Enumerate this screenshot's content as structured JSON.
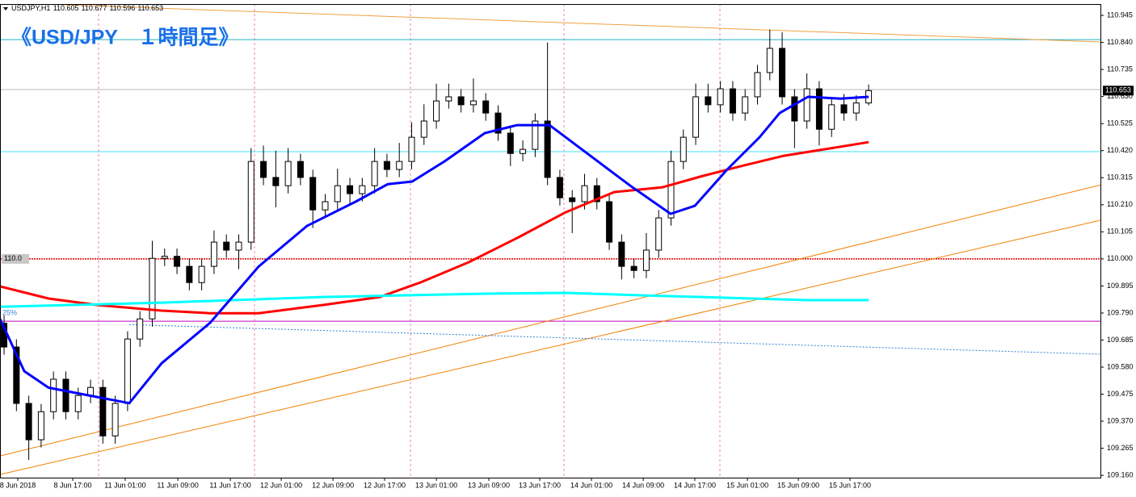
{
  "chart_data": {
    "type": "candlestick",
    "symbol": "USDJPY,H1",
    "title": "《USD/JPY　１時間足》",
    "annotation": "25%",
    "xlim": [
      -0.33,
      88.77
    ],
    "ylim": [
      109.151,
      110.989
    ],
    "yticks": [
      110.945,
      {
        "value": 110.84,
        "label": "110.840"
      },
      110.735,
      {
        "value": 110.63,
        "label": "110.630"
      },
      110.525,
      {
        "value": 110.42,
        "label": "110.420"
      },
      110.315,
      {
        "value": 110.21,
        "label": "110.210"
      },
      110.105,
      {
        "value": 110,
        "label": "110.000"
      },
      109.895,
      {
        "value": 109.79,
        "label": "109.790"
      },
      109.685,
      {
        "value": 109.58,
        "label": "109.580"
      },
      109.475,
      {
        "value": 109.37,
        "label": "109.370"
      },
      109.265,
      {
        "value": 109.16,
        "label": "109.160"
      }
    ],
    "xticks": [
      {
        "value": 1.11,
        "label": "8 Jun 2018"
      },
      {
        "value": 5.56,
        "label": "8 Jun 17:00"
      },
      {
        "value": 9.81,
        "label": "11 Jun 01:00"
      },
      {
        "value": 14.07,
        "label": "11 Jun 09:00"
      },
      {
        "value": 18.32,
        "label": "11 Jun 17:00"
      },
      {
        "value": 22.44,
        "label": "12 Jun 01:00"
      },
      {
        "value": 26.63,
        "label": "12 Jun 09:00"
      },
      {
        "value": 30.81,
        "label": "12 Jun 17:00"
      },
      {
        "value": 35,
        "label": "13 Jun 01:00"
      },
      {
        "value": 39.25,
        "label": "13 Jun 09:00"
      },
      {
        "value": 43.37,
        "label": "13 Jun 17:00"
      },
      {
        "value": 47.56,
        "label": "14 Jun 01:00"
      },
      {
        "value": 51.75,
        "label": "14 Jun 09:00"
      },
      {
        "value": 55.93,
        "label": "14 Jun 17:00"
      },
      {
        "value": 60.19,
        "label": "15 Jun 01:00"
      },
      {
        "value": 64.31,
        "label": "15 Jun 09:00"
      },
      {
        "value": 68.49,
        "label": "15 Jun 17:00"
      }
    ],
    "open": [
      109.75,
      109.658,
      109.439,
      109.298,
      109.407,
      109.533,
      109.407,
      109.47,
      109.501,
      109.313,
      109.439,
      109.689,
      109.767,
      110.002,
      110.01,
      109.971,
      109.908,
      109.971,
      110.065,
      110.034,
      110.065,
      110.378,
      110.316,
      110.284,
      110.378,
      110.316,
      110.19,
      110.222,
      110.284,
      110.253,
      110.284,
      110.378,
      110.347,
      110.378,
      110.472,
      110.535,
      110.613,
      110.629,
      110.598,
      110.613,
      110.566,
      110.488,
      110.409,
      110.425,
      110.535,
      110.316,
      110.237,
      110.222,
      110.284,
      110.222,
      110.065,
      109.971,
      109.955,
      110.034,
      110.159,
      110.378,
      110.472,
      110.629,
      110.598,
      110.66,
      110.566,
      110.629,
      110.723,
      110.817,
      110.629,
      110.535,
      110.66,
      110.503,
      110.598,
      110.566,
      110.605
    ],
    "high": [
      109.78,
      109.688,
      109.469,
      109.437,
      109.563,
      109.563,
      109.5,
      109.531,
      109.531,
      109.469,
      109.719,
      109.797,
      110.07,
      110.04,
      110.04,
      110.001,
      110.001,
      110.11,
      110.095,
      110.095,
      110.43,
      110.44,
      110.42,
      110.43,
      110.408,
      110.346,
      110.252,
      110.35,
      110.314,
      110.314,
      110.43,
      110.408,
      110.45,
      110.53,
      110.6,
      110.68,
      110.68,
      110.659,
      110.7,
      110.643,
      110.596,
      110.518,
      110.46,
      110.565,
      110.84,
      110.346,
      110.267,
      110.33,
      110.314,
      110.252,
      110.095,
      110.001,
      110.1,
      110.19,
      110.42,
      110.502,
      110.68,
      110.68,
      110.69,
      110.69,
      110.659,
      110.753,
      110.89,
      110.88,
      110.659,
      110.72,
      110.69,
      110.628,
      110.64,
      110.635,
      110.677
    ],
    "low": [
      109.628,
      109.409,
      109.22,
      109.268,
      109.377,
      109.377,
      109.377,
      109.44,
      109.283,
      109.283,
      109.409,
      109.659,
      109.737,
      109.972,
      109.941,
      109.878,
      109.878,
      109.941,
      110.004,
      109.96,
      110.035,
      110.286,
      110.2,
      110.254,
      110.286,
      110.12,
      110.16,
      110.192,
      110.21,
      110.223,
      110.254,
      110.317,
      110.317,
      110.348,
      110.442,
      110.505,
      110.583,
      110.568,
      110.568,
      110.536,
      110.458,
      110.36,
      110.379,
      110.395,
      110.286,
      110.207,
      110.1,
      110.192,
      110.192,
      110.035,
      109.92,
      109.925,
      109.925,
      110.004,
      110.129,
      110.348,
      110.442,
      110.568,
      110.568,
      110.536,
      110.536,
      110.599,
      110.693,
      110.599,
      110.43,
      110.505,
      110.44,
      110.473,
      110.536,
      110.536,
      110.596
    ],
    "close": [
      109.658,
      109.439,
      109.298,
      109.407,
      109.533,
      109.407,
      109.47,
      109.501,
      109.313,
      109.439,
      109.689,
      109.767,
      110.002,
      110.01,
      109.971,
      109.908,
      109.971,
      110.065,
      110.034,
      110.065,
      110.378,
      110.316,
      110.284,
      110.378,
      110.316,
      110.19,
      110.222,
      110.284,
      110.253,
      110.284,
      110.378,
      110.347,
      110.378,
      110.472,
      110.535,
      110.613,
      110.629,
      110.598,
      110.613,
      110.566,
      110.488,
      110.409,
      110.425,
      110.535,
      110.316,
      110.237,
      110.222,
      110.284,
      110.222,
      110.065,
      109.971,
      109.955,
      110.034,
      110.159,
      110.378,
      110.472,
      110.629,
      110.598,
      110.66,
      110.566,
      110.629,
      110.723,
      110.817,
      110.629,
      110.535,
      110.66,
      110.503,
      110.598,
      110.566,
      110.605,
      110.653
    ],
    "up_color": "#ffffff",
    "down_color": "#000000",
    "series": [
      {
        "color": "#ff0000",
        "x": [
          -0.33,
          3.6,
          7.52,
          12.76,
          16.68,
          20.61,
          25.84,
          30.42,
          33.69,
          37.62,
          41.54,
          45.47,
          49.39,
          53.32,
          56.59,
          59.86,
          63.13,
          66.4,
          70
        ],
        "values": [
          109.893,
          109.846,
          109.821,
          109.799,
          109.789,
          109.789,
          109.821,
          109.852,
          109.908,
          109.987,
          110.081,
          110.181,
          110.259,
          110.278,
          110.322,
          110.362,
          110.4,
          110.425,
          110.453
        ]
      },
      {
        "color": "#00ffff",
        "x": [
          -0.33,
          12.76,
          25.84,
          38.92,
          45.47,
          52.01,
          58.55,
          65.09,
          70
        ],
        "values": [
          109.814,
          109.83,
          109.852,
          109.865,
          109.868,
          109.858,
          109.849,
          109.84,
          109.84
        ]
      },
      {
        "color": "#0000ff",
        "x": [
          -0.33,
          1.64,
          3.6,
          6.87,
          10.14,
          12.76,
          16.68,
          20.61,
          24.53,
          28.46,
          31.07,
          33.04,
          35.65,
          38.92,
          41.54,
          44.16,
          46.77,
          50.7,
          53.97,
          55.93,
          58.55,
          61.17,
          62.8,
          65.09,
          67.71,
          70
        ],
        "values": [
          109.767,
          109.564,
          109.5,
          109.47,
          109.44,
          109.595,
          109.752,
          109.97,
          110.128,
          110.222,
          110.29,
          110.3,
          110.378,
          110.488,
          110.519,
          110.519,
          110.425,
          110.284,
          110.175,
          110.206,
          110.347,
          110.472,
          110.566,
          110.629,
          110.622,
          110.629
        ]
      }
    ],
    "hlines": [
      {
        "value": 110.851,
        "color": "#20b2c0"
      },
      {
        "value": 110.416,
        "color": "#40e0f0"
      },
      {
        "value": 110.657,
        "color": "#b8b8b8"
      },
      {
        "value": 109.758,
        "color": "#c000c0"
      },
      {
        "value": 110,
        "label": "110.0",
        "color": "#e00000"
      }
    ],
    "trendlines": [
      {
        "color": "#f0a040",
        "x": [
          -0.33,
          88.77
        ],
        "values": [
          110.995,
          110.842
        ]
      },
      {
        "color": "#f08000",
        "x": [
          -0.33,
          88.77
        ],
        "values": [
          109.235,
          110.287
        ]
      },
      {
        "color": "#f08000",
        "x": [
          -0.33,
          88.77
        ],
        "values": [
          109.163,
          110.15
        ]
      },
      {
        "color": "#3080d0",
        "x": [
          10.14,
          88.77
        ],
        "values": [
          109.745,
          109.63
        ]
      }
    ]
  }
}
